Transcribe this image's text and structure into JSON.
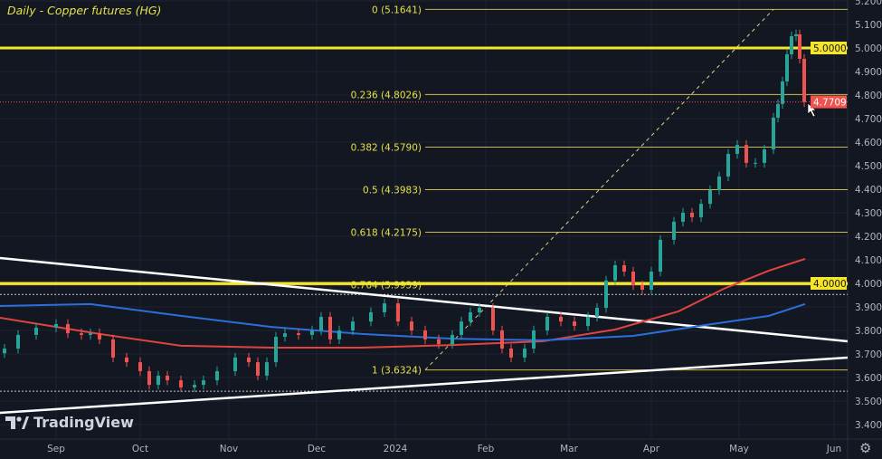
{
  "chart_data": {
    "type": "candlestick",
    "title": "Daily - Copper futures (HG)",
    "ylim": [
      3.4,
      5.2
    ],
    "y_ticks": [
      "5.2000",
      "5.1000",
      "5.0000",
      "4.9000",
      "4.8000",
      "4.7000",
      "4.6000",
      "4.5000",
      "4.4000",
      "4.3000",
      "4.2000",
      "4.1000",
      "4.0000",
      "3.9000",
      "3.8000",
      "3.7000",
      "3.6000",
      "3.5000",
      "3.4000"
    ],
    "x_ticks": [
      "Sep",
      "Oct",
      "Nov",
      "Dec",
      "2024",
      "Feb",
      "Mar",
      "Apr",
      "May",
      "Jun"
    ],
    "grid": true,
    "closes": [
      3.723,
      3.781,
      3.812,
      3.827,
      3.788,
      3.781,
      3.788,
      3.762,
      3.685,
      3.665,
      3.627,
      3.569,
      3.608,
      3.588,
      3.558,
      3.569,
      3.588,
      3.627,
      3.685,
      3.665,
      3.608,
      3.665,
      3.773,
      3.788,
      3.781,
      3.8,
      3.858,
      3.762,
      3.8,
      3.838,
      3.877,
      3.915,
      3.838,
      3.8,
      3.762,
      3.742,
      3.781,
      3.838,
      3.877,
      3.896,
      3.8,
      3.723,
      3.685,
      3.723,
      3.8,
      3.858,
      3.838,
      3.819,
      3.858,
      3.896,
      4.012,
      4.077,
      4.05,
      3.992,
      3.973,
      4.05,
      4.185,
      4.262,
      4.3,
      4.281,
      4.338,
      4.396,
      4.454,
      4.55,
      4.588,
      4.512,
      4.512,
      4.569,
      4.704,
      4.762,
      4.858,
      4.973,
      5.05,
      5.058,
      4.954,
      4.77
    ],
    "moving_averages": [
      {
        "color": "#e0443f",
        "values": [
          3.854,
          3.785,
          3.735,
          3.727,
          3.727,
          3.738,
          3.754,
          3.804,
          3.881,
          3.977,
          4.054,
          4.104
        ]
      },
      {
        "color": "#2a6fdb",
        "values": [
          3.904,
          3.912,
          3.862,
          3.815,
          3.785,
          3.765,
          3.758,
          3.777,
          3.823,
          3.862,
          3.912
        ]
      }
    ],
    "fib_levels": [
      {
        "label": "0 (5.1641)",
        "value": 5.1641
      },
      {
        "label": "0.236 (4.8026)",
        "value": 4.8026
      },
      {
        "label": "0.382 (4.5790)",
        "value": 4.579
      },
      {
        "label": "0.5 (4.3983)",
        "value": 4.3983
      },
      {
        "label": "0.618 (4.2175)",
        "value": 4.2175
      },
      {
        "label": "0.764 (3.9939)",
        "value": 3.9939
      },
      {
        "label": "1 (3.6324)",
        "value": 3.6324
      }
    ],
    "horizontal_levels": [
      {
        "label": "5.0000",
        "value": 5.0
      },
      {
        "label": "4.0000",
        "value": 4.0
      }
    ],
    "dotted_levels": [
      3.953,
      3.542
    ],
    "last_price": {
      "label": "4.7709",
      "value": 4.7709
    },
    "colors": {
      "up": "#26a69a",
      "down": "#ef5350",
      "level": "#f5e52a",
      "fib": "#c9b94a",
      "background": "#131722"
    }
  },
  "branding": {
    "logo_text": "TradingView"
  },
  "icons": {
    "settings": "gear-icon"
  }
}
